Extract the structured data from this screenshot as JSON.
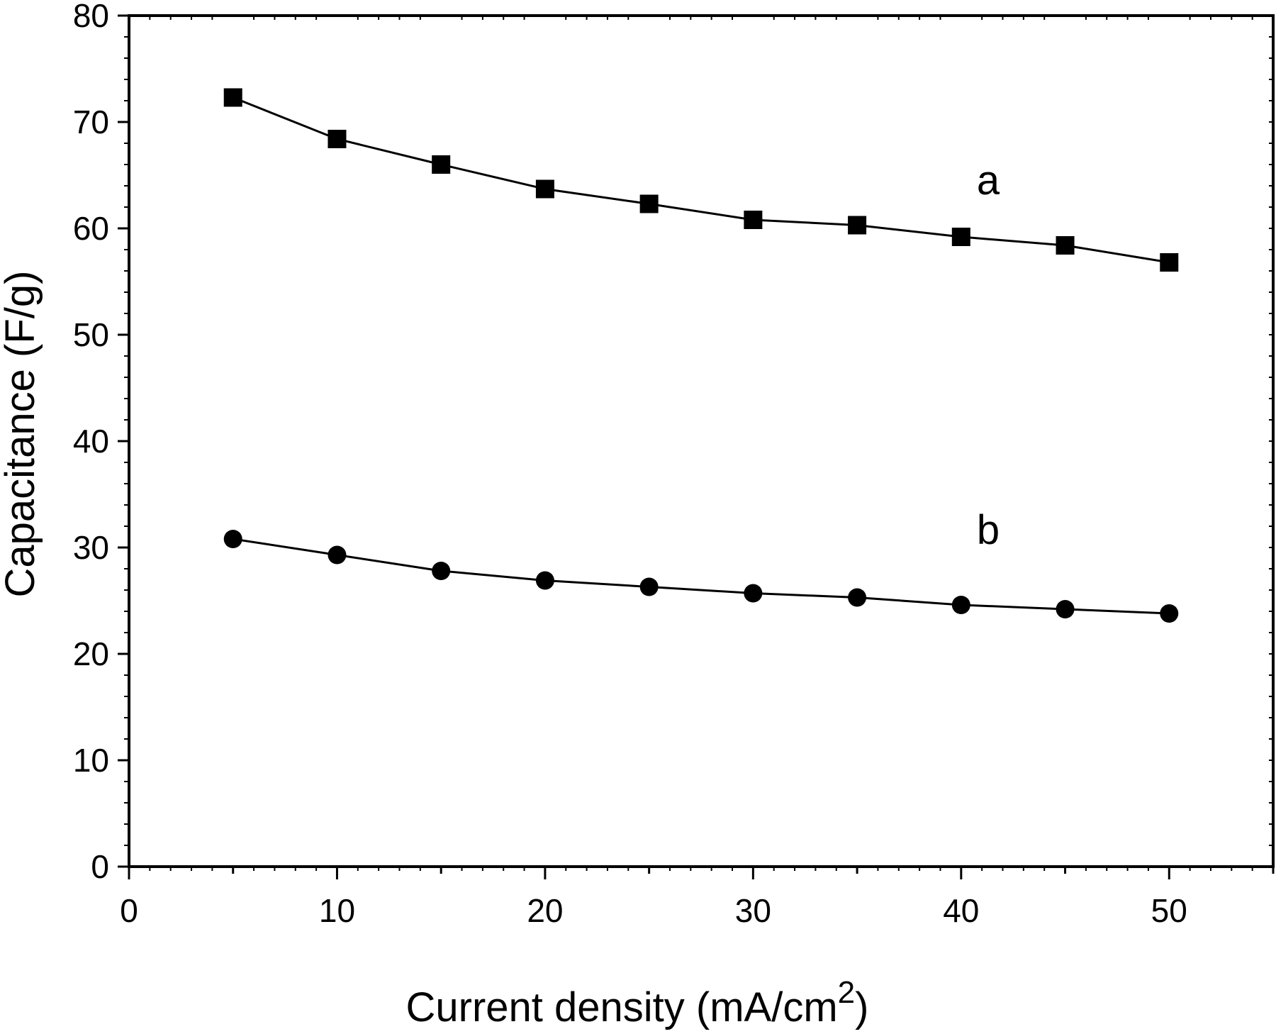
{
  "chart_data": {
    "type": "line",
    "xlabel": "Current density  (mA/cm",
    "xlabel_superscript": "2",
    "xlabel_close": ")",
    "ylabel": "Capacitance (F/g)",
    "xlim": [
      0,
      55
    ],
    "ylim": [
      0,
      80
    ],
    "x_ticks": [
      0,
      10,
      20,
      30,
      40,
      50
    ],
    "y_ticks": [
      0,
      10,
      20,
      30,
      40,
      50,
      60,
      70,
      80
    ],
    "grid": false,
    "series": [
      {
        "name": "a",
        "marker": "square",
        "x": [
          5,
          10,
          15,
          20,
          25,
          30,
          35,
          40,
          45,
          50
        ],
        "y": [
          72.3,
          68.4,
          66.0,
          63.7,
          62.3,
          60.8,
          60.3,
          59.2,
          58.4,
          56.8
        ]
      },
      {
        "name": "b",
        "marker": "circle",
        "x": [
          5,
          10,
          15,
          20,
          25,
          30,
          35,
          40,
          45,
          50
        ],
        "y": [
          30.8,
          29.3,
          27.8,
          26.9,
          26.3,
          25.7,
          25.3,
          24.6,
          24.2,
          23.8
        ]
      }
    ],
    "colors": {
      "line": "#000000",
      "marker": "#000000"
    }
  }
}
